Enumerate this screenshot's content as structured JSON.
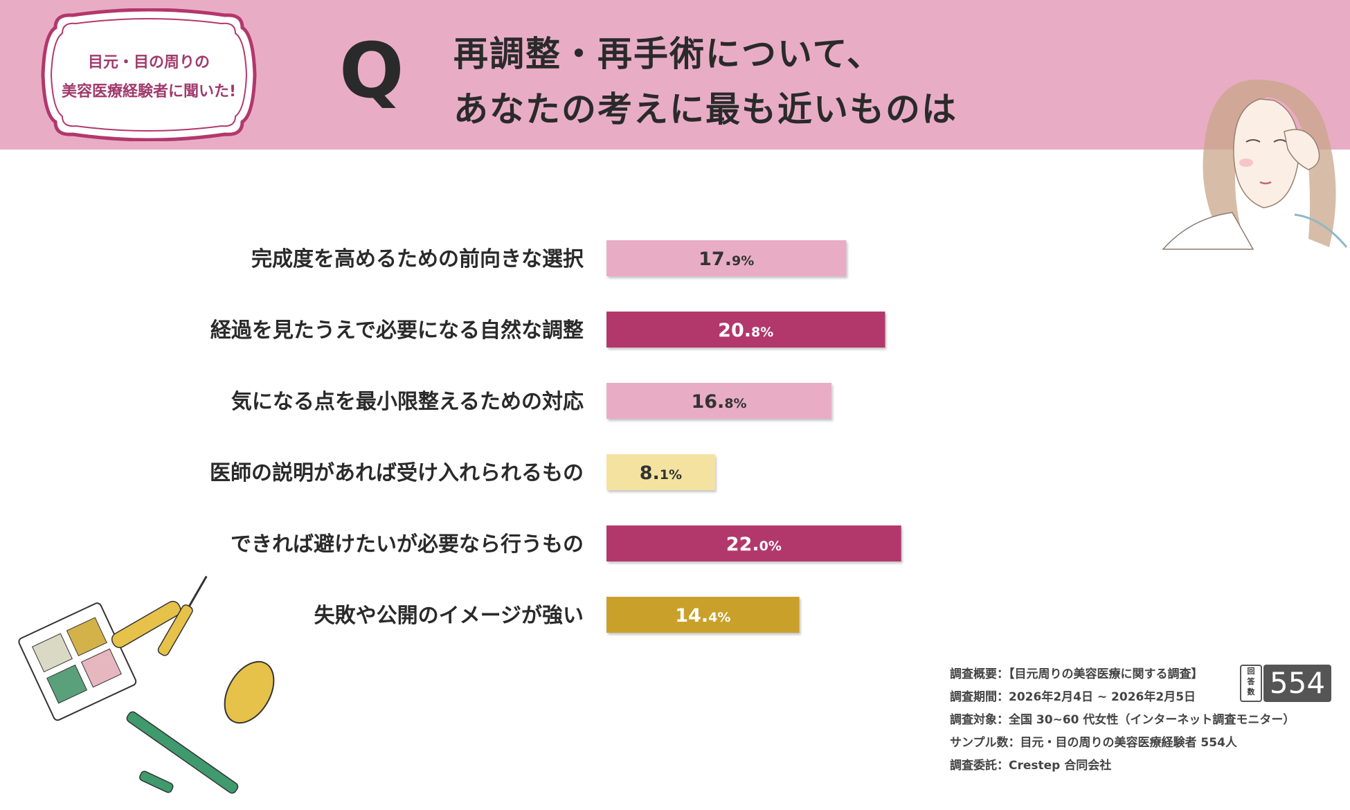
{
  "header": {
    "badge_line1": "目元・目の周りの",
    "badge_line2": "美容医療経験者に聞いた!",
    "q_letter": "Q",
    "title_line1": "再調整・再手術について、",
    "title_line2": "あなたの考えに最も近いものは"
  },
  "chart_data": {
    "type": "bar",
    "orientation": "horizontal",
    "categories": [
      "完成度を高めるための前向きな選択",
      "経過を見たうえで必要になる自然な調整",
      "気になる点を最小限整えるための対応",
      "医師の説明があれば受け入れられるもの",
      "できれば避けたいが必要なら行うもの",
      "失敗や公開のイメージが強い"
    ],
    "values": [
      17.9,
      20.8,
      16.8,
      8.1,
      22.0,
      14.4
    ],
    "value_labels": [
      {
        "int": "17.",
        "dec": "9%"
      },
      {
        "int": "20.",
        "dec": "8%"
      },
      {
        "int": "16.",
        "dec": "8%"
      },
      {
        "int": "8.",
        "dec": "1%"
      },
      {
        "int": "22.",
        "dec": "0%"
      },
      {
        "int": "14.",
        "dec": "4%"
      }
    ],
    "bar_colors": [
      "#e8adc4",
      "#b2376c",
      "#e8adc4",
      "#f4e3a0",
      "#b2376c",
      "#c9a12c"
    ],
    "label_colors": [
      "#333333",
      "#ffffff",
      "#333333",
      "#333333",
      "#ffffff",
      "#ffffff"
    ],
    "unit": "%",
    "title": "",
    "xlabel": "",
    "ylabel": "",
    "grid": false,
    "legend": "none"
  },
  "survey": {
    "summary": "調査概要：【目元周りの美容医療に関する調査】",
    "period": "調査期間：2026年2月4日 ~ 2026年2月5日",
    "target": "調査対象：全国 30~60 代女性（インターネット調査モニター）",
    "sample": "サンプル数：目元・目の周りの美容医療経験者 554人",
    "commission": "調査委託：Crestep 合同会社"
  },
  "respondents": {
    "label_chars": [
      "回",
      "答",
      "数"
    ],
    "value": "554"
  }
}
